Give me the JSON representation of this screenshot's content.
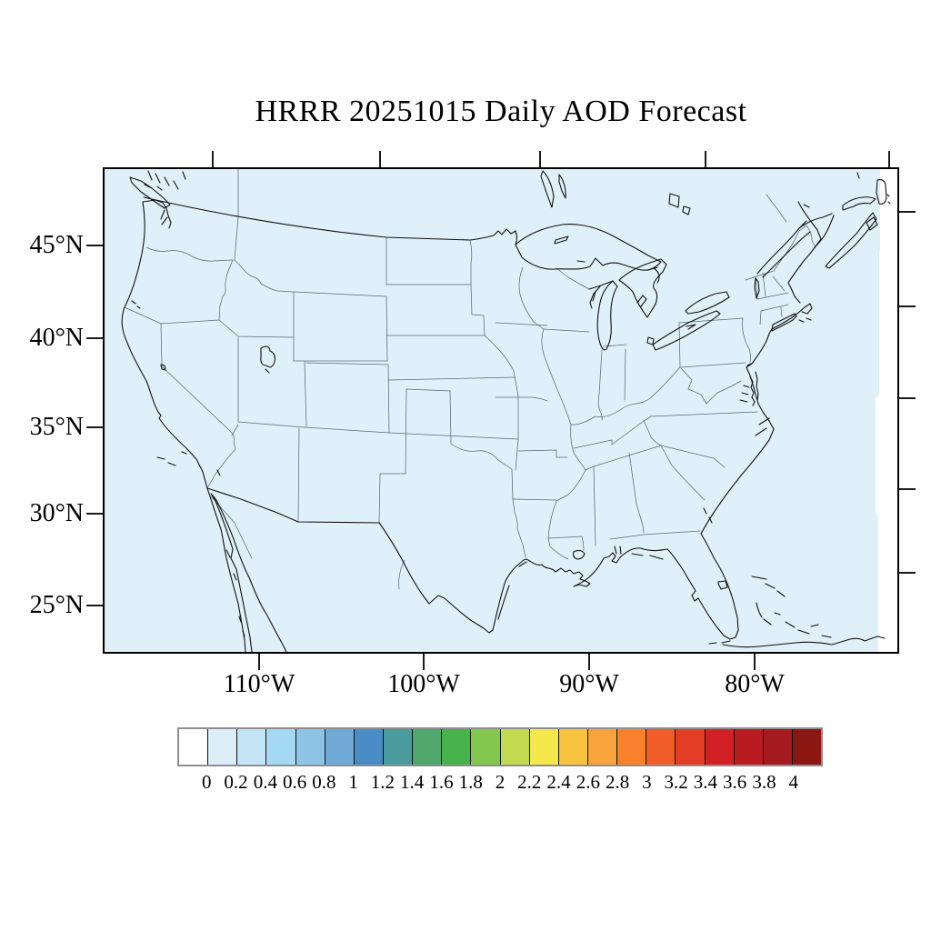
{
  "figure": {
    "title": "HRRR 20251015 Daily AOD Forecast"
  },
  "map": {
    "fill_color": "#dff0f9",
    "no_data_color": "#ffffff",
    "frame_color": "#000000",
    "latitude_labels": [
      "45°N",
      "40°N",
      "35°N",
      "30°N",
      "25°N"
    ],
    "longitude_labels": [
      "110°W",
      "100°W",
      "90°W",
      "80°W"
    ]
  },
  "colorbar": {
    "tick_labels": [
      "0",
      "0.2",
      "0.4",
      "0.6",
      "0.8",
      "1",
      "1.2",
      "1.4",
      "1.6",
      "1.8",
      "2",
      "2.2",
      "2.4",
      "2.6",
      "2.8",
      "3",
      "3.2",
      "3.4",
      "3.6",
      "3.8",
      "4"
    ],
    "colors": [
      "#ffffff",
      "#dceef8",
      "#c3e4f5",
      "#a5d8f2",
      "#8ec4e5",
      "#6fabd6",
      "#4a8cc6",
      "#4a9b9b",
      "#4fa76c",
      "#46b24a",
      "#83c74f",
      "#c3d94f",
      "#f5e84b",
      "#f8c43f",
      "#f9a33c",
      "#f9812b",
      "#f15d28",
      "#e33e25",
      "#d22027",
      "#ba1b21",
      "#a41a1e",
      "#8b1713"
    ]
  }
}
